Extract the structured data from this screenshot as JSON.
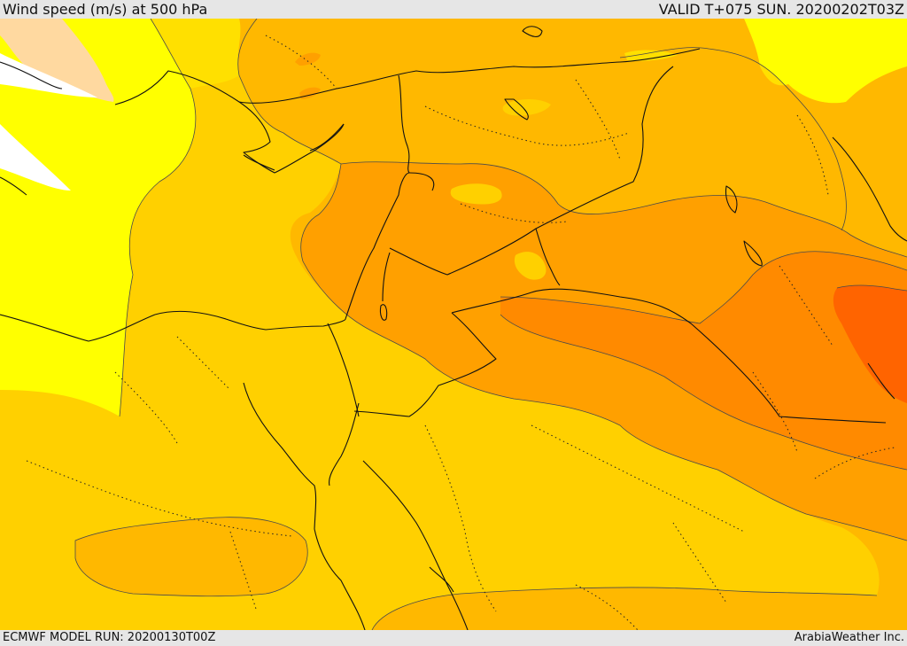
{
  "header": {
    "title": "Wind speed (m/s) at 500 hPa",
    "valid": "VALID T+075 SUN. 20200202T03Z"
  },
  "footer": {
    "model_run": "ECMWF MODEL RUN: 20200130T00Z",
    "credit": "ArabiaWeather Inc."
  },
  "map": {
    "field": "wind speed at 500 hPa",
    "colors": {
      "white": "#ffffff",
      "peach": "#ffd9a0",
      "yellow": "#ffff00",
      "light_gold": "#ffe000",
      "gold": "#ffd000",
      "amber": "#ffb800",
      "orange": "#ffa000",
      "dark_orange": "#ff8a00",
      "red_orange": "#ff6400"
    }
  }
}
